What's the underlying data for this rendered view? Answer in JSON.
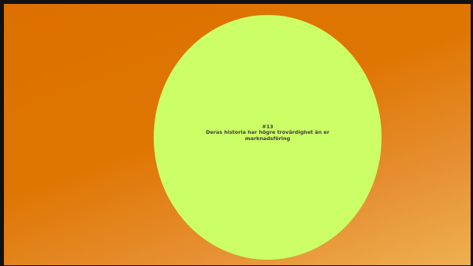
{
  "slide": {
    "number": "#13",
    "headline": "Deras historia har högre trovärdighet än er marknadsföring"
  },
  "colors": {
    "background_top": "#dd7000",
    "background_bottom": "#eeb050",
    "circle": "#ccff66",
    "text": "#3c3c3c"
  }
}
